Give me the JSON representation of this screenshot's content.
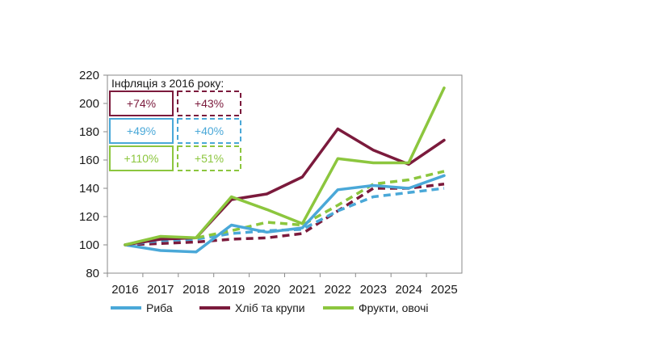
{
  "chart_data": {
    "type": "line",
    "title": "",
    "xlabel": "",
    "ylabel": "",
    "x": [
      "2016",
      "2017",
      "2018",
      "2019",
      "2020",
      "2021",
      "2022",
      "2023",
      "2024",
      "2025"
    ],
    "ylim": [
      80,
      220
    ],
    "yticks": [
      80,
      100,
      120,
      140,
      160,
      180,
      200,
      220
    ],
    "grid": false,
    "legend_position": "bottom",
    "series": [
      {
        "key": "fish",
        "name": "Риба",
        "color": "#4aa8d8",
        "dashed": false,
        "values": [
          100,
          96,
          95,
          114,
          109,
          112,
          139,
          142,
          140,
          149
        ]
      },
      {
        "key": "bread",
        "name": "Хліб та крупи",
        "color": "#7b1a3c",
        "dashed": false,
        "values": [
          100,
          104,
          105,
          132,
          136,
          148,
          182,
          167,
          157,
          174
        ]
      },
      {
        "key": "fruit",
        "name": "Фрукти, овочі",
        "color": "#8cc63e",
        "dashed": false,
        "values": [
          100,
          106,
          105,
          134,
          125,
          115,
          161,
          158,
          158,
          211
        ]
      },
      {
        "key": "bread_dash",
        "color": "#7b1a3c",
        "dashed": true,
        "values": [
          100,
          101,
          102,
          104,
          105,
          108,
          124,
          140,
          140,
          143
        ]
      },
      {
        "key": "fish_dash",
        "color": "#4aa8d8",
        "dashed": true,
        "values": [
          100,
          103,
          104,
          108,
          110,
          111,
          124,
          134,
          137,
          140
        ]
      },
      {
        "key": "fruit_dash",
        "color": "#8cc63e",
        "dashed": true,
        "values": [
          100,
          105,
          105,
          110,
          116,
          114,
          128,
          143,
          146,
          152
        ]
      }
    ],
    "annotation": {
      "title": "Інфляція з 2016 року:",
      "boxes": [
        {
          "key": "bread_solid",
          "label": "+74%",
          "color": "#7b1a3c",
          "dashed": false
        },
        {
          "key": "bread_dash",
          "label": "+43%",
          "color": "#7b1a3c",
          "dashed": true
        },
        {
          "key": "fish_solid",
          "label": "+49%",
          "color": "#4aa8d8",
          "dashed": false
        },
        {
          "key": "fish_dash",
          "label": "+40%",
          "color": "#4aa8d8",
          "dashed": true
        },
        {
          "key": "fruit_solid",
          "label": "+110%",
          "color": "#8cc63e",
          "dashed": false
        },
        {
          "key": "fruit_dash",
          "label": "+51%",
          "color": "#8cc63e",
          "dashed": true
        }
      ]
    }
  }
}
